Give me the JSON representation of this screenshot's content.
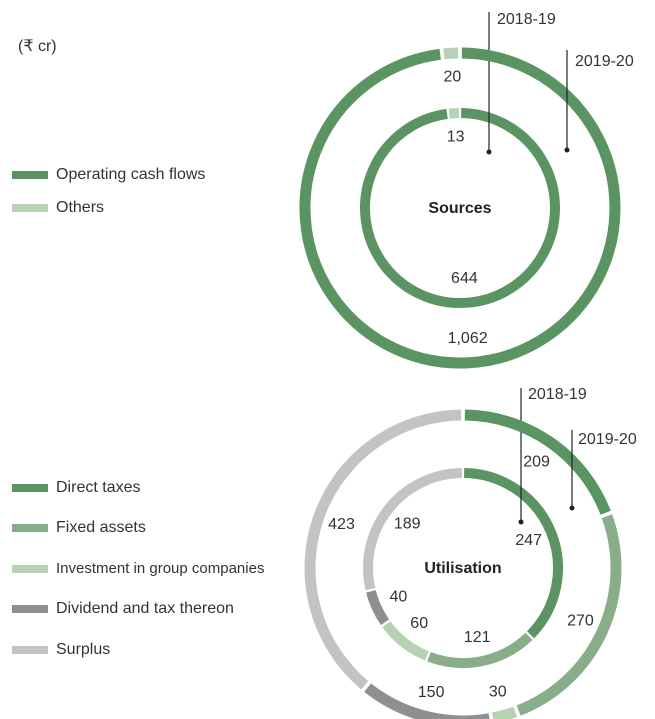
{
  "chart_data": [
    {
      "type": "pie",
      "title": "Sources",
      "unit_label": "(₹ cr)",
      "categories": [
        "Operating cash flows",
        "Others"
      ],
      "colors": [
        "#5b9463",
        "#b7d1b3"
      ],
      "series": [
        {
          "name": "2018-19",
          "values": [
            644,
            13
          ]
        },
        {
          "name": "2019-20",
          "values": [
            1062,
            20
          ],
          "value_labels": [
            "1,062",
            "20"
          ]
        }
      ]
    },
    {
      "type": "pie",
      "title": "Utilisation",
      "categories": [
        "Direct taxes",
        "Fixed assets",
        "Investment in group companies",
        "Dividend and tax thereon",
        "Surplus"
      ],
      "colors": [
        "#5b9463",
        "#87ae89",
        "#b7d1b3",
        "#8e8f91",
        "#c3c3c5"
      ],
      "series": [
        {
          "name": "2018-19",
          "values": [
            247,
            121,
            60,
            40,
            189
          ]
        },
        {
          "name": "2019-20",
          "values": [
            209,
            270,
            30,
            150,
            423
          ]
        }
      ]
    }
  ]
}
